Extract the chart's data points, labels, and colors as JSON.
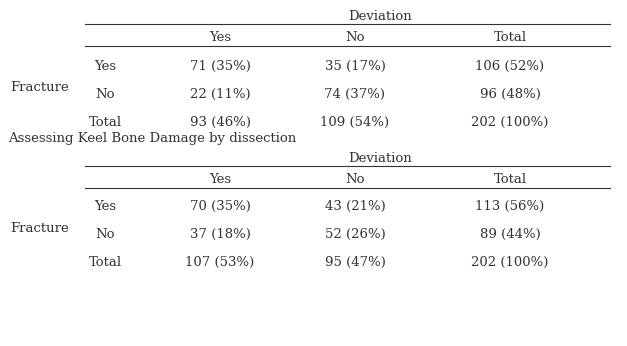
{
  "top_header": "Deviation",
  "section1_label": "Assessing Keel Bone Damage by dissection",
  "section2_header": "Deviation",
  "col_headers": [
    "Yes",
    "No",
    "Total"
  ],
  "row_label_left": "Fracture",
  "row_labels": [
    "Yes",
    "No",
    "Total"
  ],
  "table1_data": [
    [
      "71 (35%)",
      "35 (17%)",
      "106 (52%)"
    ],
    [
      "22 (11%)",
      "74 (37%)",
      "96 (48%)"
    ],
    [
      "93 (46%)",
      "109 (54%)",
      "202 (100%)"
    ]
  ],
  "table2_data": [
    [
      "70 (35%)",
      "43 (21%)",
      "113 (56%)"
    ],
    [
      "37 (18%)",
      "52 (26%)",
      "89 (44%)"
    ],
    [
      "107 (53%)",
      "95 (47%)",
      "202 (100%)"
    ]
  ],
  "bg_color": "#ffffff",
  "text_color": "#333333",
  "fontsize": 9.5,
  "font_family": "serif"
}
